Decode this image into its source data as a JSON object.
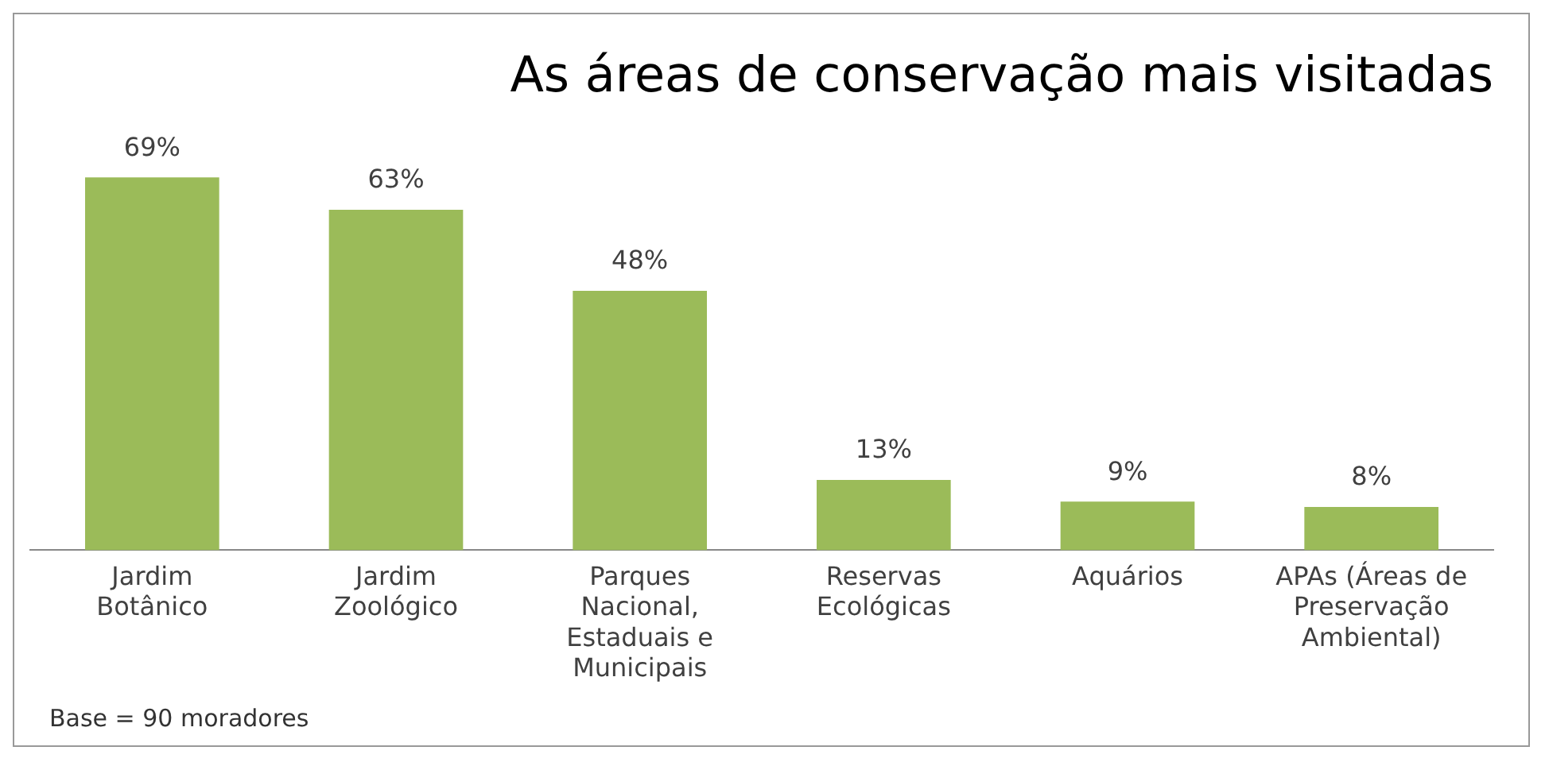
{
  "chart_data": {
    "type": "bar",
    "title": "As áreas de conservação mais visitadas",
    "categories": [
      "Jardim Botânico",
      "Jardim Zoológico",
      "Parques Nacional, Estaduais e Municipais",
      "Reservas Ecológicas",
      "Aquários",
      "APAs (Áreas de Preservação Ambiental)"
    ],
    "values": [
      69,
      63,
      48,
      13,
      9,
      8
    ],
    "value_labels": [
      "69%",
      "63%",
      "48%",
      "13%",
      "9%",
      "8%"
    ],
    "color": "#9bbb59",
    "grid": false,
    "legend": false,
    "annotations": [
      "Base = 90 moradores"
    ]
  }
}
